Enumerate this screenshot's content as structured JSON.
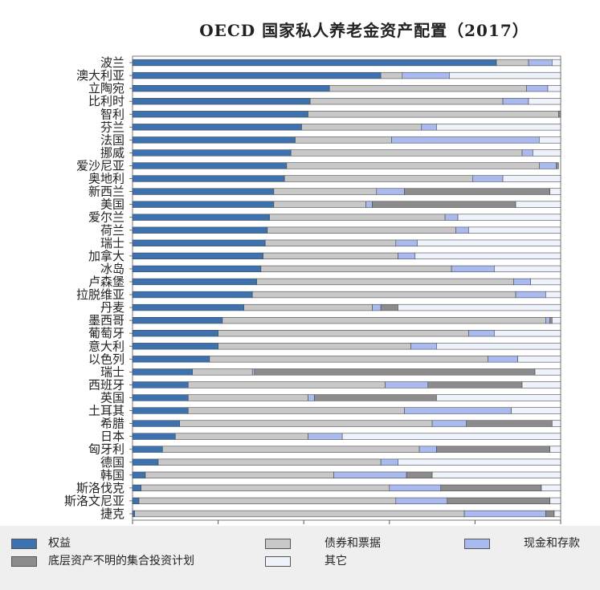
{
  "chart_data": {
    "type": "bar",
    "orientation": "horizontal-stacked-100",
    "title": "OECD 国家私人养老金资产配置（2017）",
    "xlim": [
      0,
      100
    ],
    "xticks": [
      0,
      20,
      40,
      60,
      80,
      100
    ],
    "grid": false,
    "legend_position": "bottom",
    "categories": [
      "波兰",
      "澳大利亚",
      "立陶宛",
      "比利时",
      "智利",
      "芬兰",
      "法国",
      "挪威",
      "爱沙尼亚",
      "奥地利",
      "新西兰",
      "美国",
      "爱尔兰",
      "荷兰",
      "瑞士",
      "加拿大",
      "冰岛",
      "卢森堡",
      "拉脱维亚",
      "丹麦",
      "墨西哥",
      "葡萄牙",
      "意大利",
      "以色列",
      "瑞士",
      "西班牙",
      "英国",
      "土耳其",
      "希腊",
      "日本",
      "匈牙利",
      "德国",
      "韩国",
      "斯洛伐克",
      "斯洛文尼亚",
      "捷克"
    ],
    "series": [
      {
        "name": "权益",
        "color": "#3d72b0",
        "values": [
          85,
          58,
          46,
          41.5,
          41,
          39.5,
          38,
          37,
          36,
          35.5,
          33,
          33,
          32,
          31.5,
          31,
          30.5,
          30,
          29,
          28,
          26,
          21,
          20,
          20,
          18,
          14,
          13,
          13,
          13,
          11,
          10,
          7,
          6,
          3,
          2,
          1.5,
          0.5
        ]
      },
      {
        "name": "债券和票据",
        "color": "#c8c8c8",
        "values": [
          7.5,
          5,
          46,
          45,
          58.5,
          28,
          22.5,
          54,
          59,
          44,
          24,
          21.5,
          41,
          44,
          30.5,
          31.5,
          44.5,
          60,
          61.5,
          30,
          75.5,
          58.5,
          45,
          65,
          14,
          46,
          28,
          50.5,
          59,
          31,
          60,
          52,
          44,
          58,
          60,
          77
        ]
      },
      {
        "name": "现金和存款",
        "color": "#a9baf0",
        "values": [
          5.5,
          11,
          5,
          6,
          0,
          3.5,
          34.5,
          2.5,
          4,
          7,
          6.5,
          1.5,
          3,
          3,
          5,
          4,
          10,
          4,
          7,
          2,
          1,
          6,
          6,
          7,
          0.5,
          10,
          1.5,
          25,
          8,
          8,
          4,
          4,
          17,
          12,
          12,
          19
        ]
      },
      {
        "name": "底层资产不明的集合投资计划",
        "color": "#8c8c8c",
        "values": [
          0,
          0,
          0,
          0,
          0.5,
          0,
          0,
          0,
          0.5,
          0,
          34,
          33.5,
          0,
          0,
          0,
          0,
          0,
          0,
          0,
          4,
          0.5,
          0,
          0,
          0,
          65.5,
          22,
          28.5,
          0,
          20,
          0,
          26.5,
          0,
          6,
          23.5,
          24,
          2
        ]
      },
      {
        "name": "其它",
        "color": "#eef3fb",
        "values": [
          2,
          26,
          3,
          7.5,
          0,
          29,
          5,
          6.5,
          0,
          13.5,
          2.5,
          10.5,
          24,
          21.5,
          33.5,
          34,
          15.5,
          7,
          3.5,
          38,
          2,
          15.5,
          29,
          10,
          6,
          9,
          29,
          11.5,
          2,
          51,
          2.5,
          38,
          30,
          4.5,
          2.5,
          1.5
        ]
      }
    ]
  }
}
